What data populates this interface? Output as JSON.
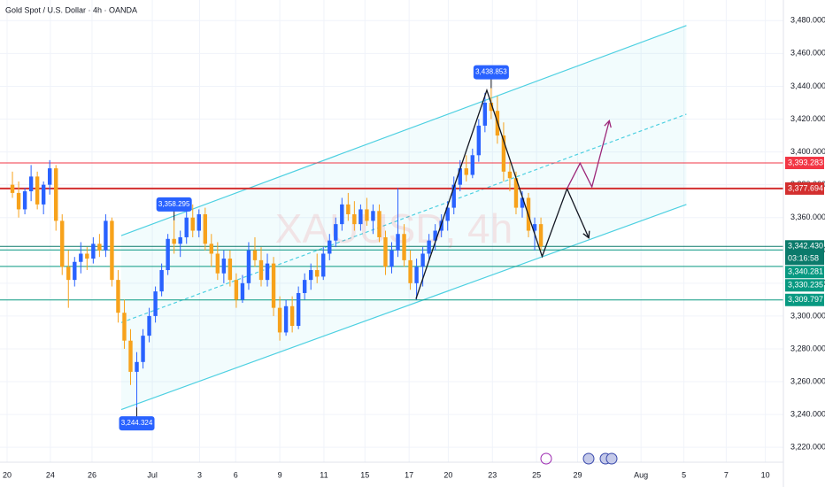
{
  "chart_data": {
    "type": "candlestick",
    "title": "Gold Spot / U.S. Dollar · 4h · OANDA",
    "watermark": "XAUUSD, 4h",
    "up_color": "#2962ff",
    "down_color": "#f7a21b",
    "grid": true,
    "x": [
      0,
      1,
      2,
      3,
      4,
      5,
      6,
      7,
      8,
      9,
      10,
      11,
      12,
      13,
      14,
      15,
      16,
      17,
      18,
      19,
      20,
      21,
      22,
      23,
      24,
      25,
      26,
      27,
      28,
      29,
      30,
      31,
      32,
      33,
      34,
      35,
      36,
      37,
      38,
      39,
      40,
      41,
      42,
      43,
      44,
      45,
      46,
      47,
      48,
      49,
      50,
      51,
      52,
      53,
      54,
      55,
      56,
      57,
      58,
      59,
      60,
      61,
      62,
      63,
      64,
      65,
      66,
      67,
      68,
      69,
      70,
      71,
      72,
      73,
      74,
      75,
      76,
      77,
      78,
      79,
      80,
      81,
      82,
      83,
      84,
      85
    ],
    "open": [
      3380,
      3375,
      3365,
      3376,
      3385,
      3368,
      3380,
      3390,
      3358,
      3330,
      3322,
      3333,
      3338,
      3335,
      3344,
      3340,
      3358,
      3322,
      3302,
      3285,
      3266,
      3272,
      3288,
      3300,
      3315,
      3328,
      3347,
      3344,
      3348,
      3360,
      3352,
      3362,
      3344,
      3338,
      3326,
      3335,
      3322,
      3310,
      3320,
      3340,
      3334,
      3322,
      3332,
      3305,
      3290,
      3306,
      3294,
      3314,
      3322,
      3328,
      3324,
      3338,
      3346,
      3356,
      3368,
      3362,
      3356,
      3365,
      3358,
      3364,
      3348,
      3330,
      3340,
      3350,
      3334,
      3320,
      3330,
      3338,
      3346,
      3352,
      3358,
      3366,
      3380,
      3390,
      3386,
      3398,
      3416,
      3430,
      3425,
      3410,
      3388,
      3384,
      3366,
      3372,
      3352,
      3356
    ],
    "high": [
      3388,
      3382,
      3378,
      3392,
      3388,
      3382,
      3395,
      3392,
      3362,
      3340,
      3336,
      3345,
      3342,
      3348,
      3350,
      3362,
      3360,
      3328,
      3310,
      3292,
      3278,
      3292,
      3305,
      3318,
      3332,
      3350,
      3358.295,
      3352,
      3365,
      3368,
      3365,
      3366,
      3350,
      3345,
      3340,
      3340,
      3326,
      3325,
      3345,
      3348,
      3342,
      3338,
      3336,
      3312,
      3310,
      3312,
      3318,
      3326,
      3332,
      3338,
      3342,
      3350,
      3360,
      3372,
      3375,
      3370,
      3368,
      3372,
      3368,
      3368,
      3352,
      3345,
      3378,
      3356,
      3340,
      3335,
      3342,
      3350,
      3356,
      3362,
      3370,
      3385,
      3395,
      3398,
      3402,
      3420,
      3436,
      3438.853,
      3434,
      3418,
      3394,
      3388,
      3376,
      3375,
      3360,
      3360
    ],
    "low": [
      3372,
      3360,
      3362,
      3370,
      3365,
      3362,
      3374,
      3352,
      3325,
      3305,
      3318,
      3326,
      3328,
      3332,
      3336,
      3336,
      3318,
      3296,
      3280,
      3258,
      3244.324,
      3268,
      3284,
      3296,
      3312,
      3325,
      3338,
      3336,
      3344,
      3348,
      3348,
      3340,
      3330,
      3322,
      3320,
      3318,
      3305,
      3308,
      3316,
      3330,
      3318,
      3318,
      3300,
      3285,
      3288,
      3290,
      3292,
      3310,
      3316,
      3320,
      3322,
      3334,
      3342,
      3352,
      3358,
      3352,
      3352,
      3355,
      3350,
      3345,
      3325,
      3326,
      3336,
      3330,
      3316,
      3310,
      3318,
      3334,
      3340,
      3348,
      3352,
      3362,
      3376,
      3382,
      3384,
      3394,
      3412,
      3420,
      3405,
      3382,
      3376,
      3362,
      3360,
      3348,
      3340,
      3340
    ],
    "close": [
      3375,
      3365,
      3376,
      3385,
      3368,
      3380,
      3390,
      3358,
      3330,
      3322,
      3333,
      3338,
      3335,
      3344,
      3340,
      3358,
      3322,
      3302,
      3285,
      3266,
      3272,
      3288,
      3300,
      3315,
      3328,
      3347,
      3344,
      3348,
      3360,
      3352,
      3362,
      3344,
      3338,
      3326,
      3335,
      3322,
      3310,
      3320,
      3340,
      3334,
      3322,
      3332,
      3305,
      3290,
      3306,
      3294,
      3314,
      3322,
      3328,
      3324,
      3338,
      3346,
      3356,
      3368,
      3362,
      3356,
      3365,
      3358,
      3364,
      3348,
      3330,
      3340,
      3350,
      3334,
      3320,
      3330,
      3338,
      3346,
      3352,
      3358,
      3366,
      3380,
      3390,
      3386,
      3398,
      3416,
      3430,
      3425,
      3410,
      3388,
      3384,
      3366,
      3372,
      3352,
      3356,
      3342.43
    ],
    "xlim": [
      -2,
      124
    ],
    "xticks": [
      {
        "value": -0.86,
        "label": "20"
      },
      {
        "value": 6.1,
        "label": "24"
      },
      {
        "value": 12.8,
        "label": "26"
      },
      {
        "value": 22.5,
        "label": "Jul"
      },
      {
        "value": 30.1,
        "label": "3"
      },
      {
        "value": 35.9,
        "label": "6"
      },
      {
        "value": 43,
        "label": "9"
      },
      {
        "value": 50.1,
        "label": "11"
      },
      {
        "value": 56.7,
        "label": "15"
      },
      {
        "value": 63.8,
        "label": "17"
      },
      {
        "value": 70.1,
        "label": "20"
      },
      {
        "value": 77.2,
        "label": "23"
      },
      {
        "value": 84.3,
        "label": "25"
      },
      {
        "value": 90.9,
        "label": "29"
      },
      {
        "value": 101.1,
        "label": "Aug"
      },
      {
        "value": 108,
        "label": "5"
      },
      {
        "value": 114.8,
        "label": "7"
      },
      {
        "value": 121.1,
        "label": "10"
      }
    ],
    "ylim": [
      3214.7,
      3486.1
    ],
    "yticks": [
      {
        "value": 3220,
        "label": "3,220.000"
      },
      {
        "value": 3240,
        "label": "3,240.000"
      },
      {
        "value": 3260,
        "label": "3,260.000"
      },
      {
        "value": 3280,
        "label": "3,280.000"
      },
      {
        "value": 3300,
        "label": "3,300.000"
      },
      {
        "value": 3320,
        "label": "3,320.000"
      },
      {
        "value": 3340,
        "label": "3,340.000"
      },
      {
        "value": 3360,
        "label": "3,360.000"
      },
      {
        "value": 3380,
        "label": "3,380.000"
      },
      {
        "value": 3400,
        "label": "3,400.000"
      },
      {
        "value": 3420,
        "label": "3,420.000"
      },
      {
        "value": 3440,
        "label": "3,440.000"
      },
      {
        "value": 3460,
        "label": "3,460.000"
      },
      {
        "value": 3480,
        "label": "3,480.000"
      }
    ],
    "markers": [
      {
        "x": 26,
        "value": 3358.295,
        "label": "3,358.295",
        "position": "above"
      },
      {
        "x": 20,
        "value": 3244.324,
        "label": "3,244.324",
        "position": "below"
      },
      {
        "x": 77,
        "value": 3438.853,
        "label": "3,438.853",
        "position": "above"
      }
    ],
    "levels": [
      {
        "value": 3393.283,
        "label": "3,393.283",
        "color": "#f23645"
      },
      {
        "value": 3377.694,
        "label": "3,377.694",
        "color": "#d32f2f"
      },
      {
        "value": 3342.43,
        "label": "3,342.430",
        "color": "#0b7a6b",
        "countdown": "03:16:58"
      },
      {
        "value": 3340.281,
        "label": "3,340.281",
        "color": "#089981"
      },
      {
        "value": 3330.235,
        "label": "3,330.235",
        "color": "#089981"
      },
      {
        "value": 3309.797,
        "label": "3,309.797",
        "color": "#089981"
      }
    ],
    "channel": {
      "x": [
        17.5,
        108.4
      ],
      "upper": [
        3349,
        3477
      ],
      "middle": [
        3296,
        3423
      ],
      "lower": [
        3243,
        3368
      ],
      "color": "#4dd0e1"
    },
    "projections": [
      {
        "color": "#131722",
        "x": [
          64.9,
          76.3,
          85.2,
          89.2,
          92.7
        ],
        "values": [
          3310.4,
          3437.6,
          3336.3,
          3377.6,
          3347.6
        ]
      },
      {
        "color": "#9c2779",
        "x": [
          89.2,
          91.3,
          93.2,
          96
        ],
        "values": [
          3377.6,
          3393.1,
          3378.7,
          3419.0
        ]
      }
    ]
  }
}
